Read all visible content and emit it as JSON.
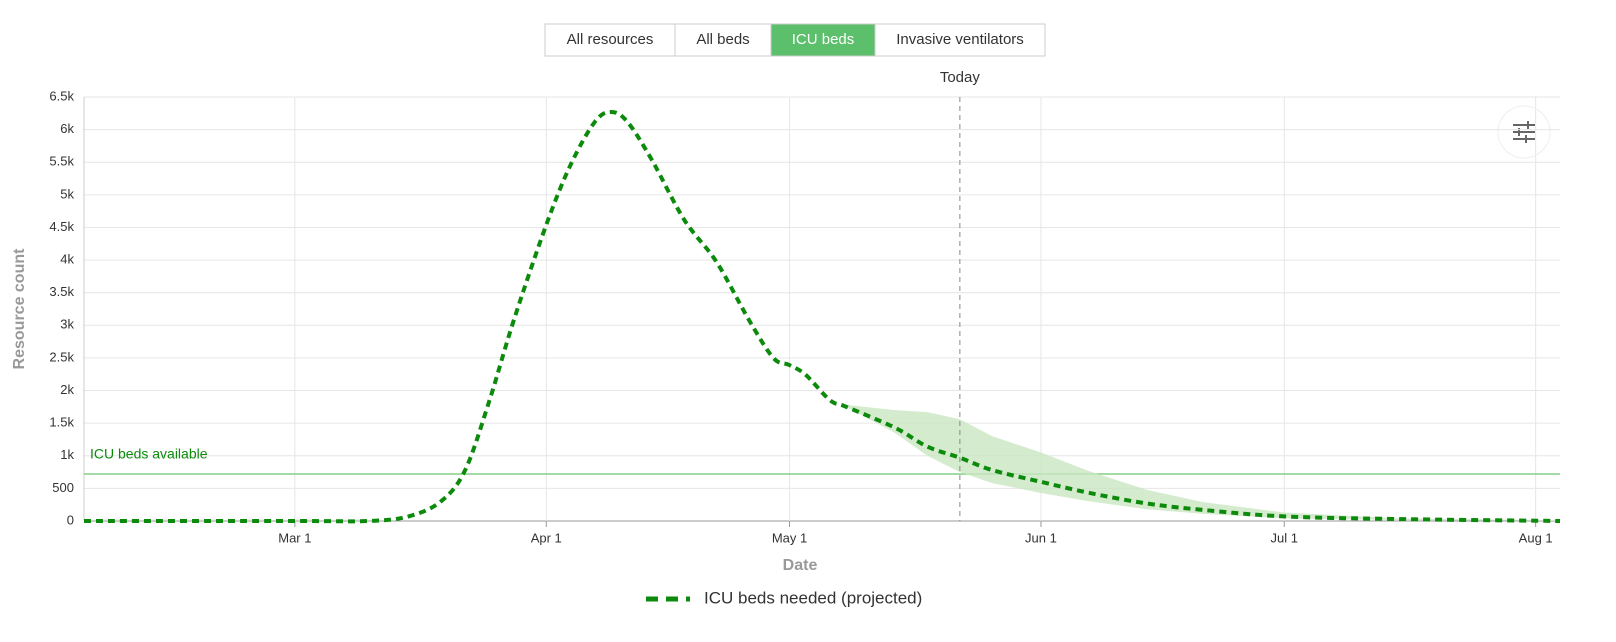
{
  "tabs": {
    "items": [
      "All resources",
      "All beds",
      "ICU beds",
      "Invasive ventilators"
    ],
    "active": 2
  },
  "chart_data": {
    "type": "line",
    "xlabel": "Date",
    "ylabel": "Resource count",
    "xlim": [
      "Feb 4",
      "Aug 4"
    ],
    "xticks": [
      "Mar 1",
      "Apr 1",
      "May 1",
      "Jun 1",
      "Jul 1",
      "Aug 1"
    ],
    "ylim": [
      0,
      6500
    ],
    "yticks": [
      0,
      500,
      {
        "value": 1000,
        "label": "1k"
      },
      {
        "value": 1500,
        "label": "1.5k"
      },
      {
        "value": 2000,
        "label": "2k"
      },
      {
        "value": 2500,
        "label": "2.5k"
      },
      {
        "value": 3000,
        "label": "3k"
      },
      {
        "value": 3500,
        "label": "3.5k"
      },
      {
        "value": 4000,
        "label": "4k"
      },
      {
        "value": 4500,
        "label": "4.5k"
      },
      {
        "value": 5000,
        "label": "5k"
      },
      {
        "value": 5500,
        "label": "5.5k"
      },
      {
        "value": 6000,
        "label": "6k"
      },
      {
        "value": 6500,
        "label": "6.5k"
      }
    ],
    "grid": true,
    "x": [
      "Feb 4",
      "Mar 1",
      "Mar 10",
      "Mar 15",
      "Mar 19",
      "Mar 22",
      "Mar 25",
      "Mar 28",
      "Apr 1",
      "Apr 4",
      "Apr 7",
      "Apr 9",
      "Apr 11",
      "Apr 14",
      "Apr 18",
      "Apr 22",
      "Apr 26",
      "Apr 29",
      "May 1",
      "May 3",
      "May 6",
      "May 8",
      "May 14",
      "May 18",
      "May 22",
      "May 26",
      "Jun 1",
      "Jun 7",
      "Jun 14",
      "Jun 21",
      "Jul 1",
      "Jul 15",
      "Aug 4"
    ],
    "series": [
      {
        "name": "ICU beds needed (projected)",
        "color": "#0b8a0b",
        "values": [
          0,
          0,
          0,
          70,
          300,
          780,
          1850,
          3080,
          4540,
          5460,
          6120,
          6270,
          6120,
          5540,
          4620,
          3970,
          3080,
          2500,
          2390,
          2240,
          1850,
          1750,
          1430,
          1140,
          970,
          780,
          600,
          430,
          270,
          170,
          70,
          30,
          0
        ],
        "band_upper": [
          null,
          null,
          null,
          null,
          null,
          null,
          null,
          null,
          null,
          null,
          null,
          null,
          null,
          null,
          null,
          null,
          null,
          null,
          null,
          null,
          null,
          1780,
          1700,
          1670,
          1560,
          1300,
          1050,
          760,
          480,
          290,
          130,
          40,
          10
        ],
        "band_lower": [
          null,
          null,
          null,
          null,
          null,
          null,
          null,
          null,
          null,
          null,
          null,
          null,
          null,
          null,
          null,
          null,
          null,
          null,
          null,
          null,
          null,
          1750,
          1350,
          1000,
          750,
          580,
          430,
          300,
          180,
          110,
          40,
          15,
          0
        ],
        "band_color": "#c9e6c2"
      }
    ],
    "reference": {
      "label": "ICU beds available",
      "value": 720,
      "color": "#86cf86"
    },
    "today": {
      "label": "Today",
      "x": "May 22"
    }
  }
}
